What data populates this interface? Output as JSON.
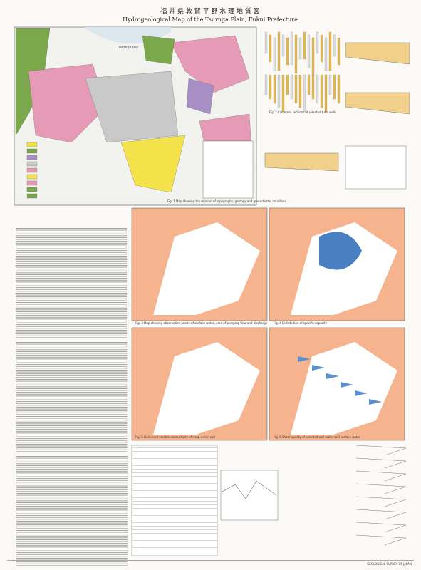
{
  "header": {
    "title_ja": "福 井 県 敦 賀 平 野 水 理 地 質 図",
    "title_en": "Hydrogeological Map of the Tsuruga Plain, Fukui Prefecture"
  },
  "main_map": {
    "bay": "Tsuruga Bay"
  },
  "figures": [
    {
      "caption": "Fig. 1 Map showing the relation of topography, geology and groundwater condition"
    },
    {
      "caption": "Fig. 2 Columnar sections of selected tube wells"
    },
    {
      "caption": "Fig. 3 Map showing observation points of surface water, area of pumping flow and discharge"
    },
    {
      "caption": "Fig. 4 Distribution of specific capacity"
    },
    {
      "caption": "Fig. 5 Isolines of electric conductivity of deep water well"
    },
    {
      "caption": "Fig. 6 Water quality of selected well water and surface water"
    }
  ],
  "footer": {
    "survey": "GEOLOGICAL SURVEY OF JAPAN"
  }
}
